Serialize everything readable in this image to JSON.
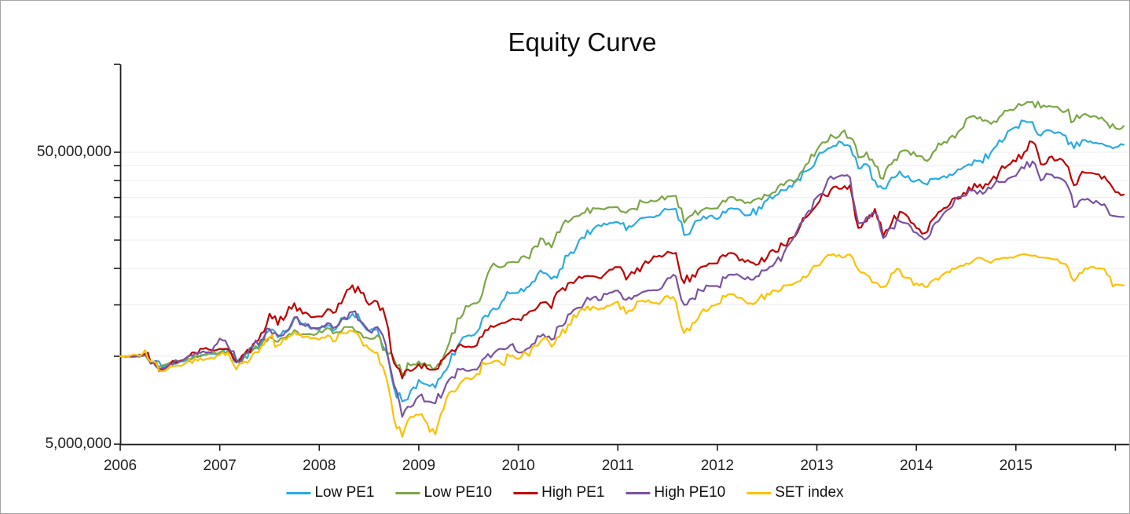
{
  "title": "Equity Curve",
  "chart_data": {
    "type": "line",
    "title": "Equity Curve",
    "legend_position": "bottom",
    "sampling": "monthly",
    "x_range": [
      "2006-01",
      "2016-02"
    ],
    "x_tick_labels": [
      "2006",
      "2007",
      "2008",
      "2009",
      "2010",
      "2011",
      "2012",
      "2013",
      "2014",
      "2015"
    ],
    "y_axis": {
      "scale": "log",
      "unit": "currency",
      "ylim_millions": [
        5,
        100
      ],
      "grid": true,
      "gridline_values_millions": [
        10,
        15,
        20,
        25,
        30,
        35,
        40,
        45,
        50
      ],
      "axis_tick_values_millions": [
        100,
        50,
        45,
        40,
        35,
        30,
        25,
        20,
        15,
        10,
        5
      ],
      "tick_labels": [
        {
          "label": "50,000,000",
          "value_millions": 50
        },
        {
          "label": "5,000,000",
          "value_millions": 5
        }
      ]
    },
    "series": [
      {
        "name": "Low PE1",
        "color": "#29ABE2",
        "values_millions": [
          10,
          10,
          10,
          10.1,
          9.6,
          9.2,
          9.4,
          9.5,
          9.7,
          10,
          10.1,
          10.2,
          10.3,
          10.5,
          9.5,
          10,
          10.6,
          11.2,
          12.3,
          11.6,
          12.1,
          13.5,
          12.8,
          12.4,
          12.3,
          12.8,
          12.4,
          13.4,
          14,
          13.1,
          12.2,
          12.4,
          10.5,
          7.8,
          7,
          7.6,
          8.3,
          8,
          7.8,
          8.8,
          10.2,
          11.2,
          11.8,
          12.1,
          13.8,
          14.6,
          15.4,
          16.4,
          16.5,
          17.2,
          18.1,
          19.3,
          18.4,
          19.8,
          22.1,
          23.6,
          25.4,
          27.2,
          27.9,
          28.6,
          28.8,
          27,
          28.3,
          29.8,
          30,
          30.4,
          31.8,
          32,
          26,
          27.6,
          29.3,
          30.2,
          29.5,
          31,
          32,
          31,
          30.5,
          32.5,
          34.3,
          35.5,
          37,
          38,
          40,
          43.5,
          47.8,
          50.5,
          52.5,
          54,
          52.5,
          44,
          45.5,
          40,
          37.5,
          41,
          43,
          41.5,
          40,
          39,
          40.5,
          41,
          42,
          43.7,
          45,
          47,
          46,
          50,
          55,
          58.8,
          61,
          64,
          63.5,
          57,
          59.5,
          58.5,
          57,
          51.6,
          55,
          54.5,
          53.5,
          52.5,
          52,
          53
        ]
      },
      {
        "name": "Low PE10",
        "color": "#7CA648",
        "values_millions": [
          10,
          10,
          10,
          10.1,
          9.6,
          9.3,
          9.5,
          9.6,
          9.8,
          10,
          10.1,
          10.2,
          10.3,
          10.4,
          9.6,
          10,
          10.5,
          10.9,
          11.6,
          11.2,
          11.6,
          12.3,
          11.9,
          11.9,
          12.2,
          12.5,
          12.1,
          12.6,
          12.6,
          12,
          11.5,
          11.8,
          10.5,
          9.8,
          8.7,
          9.3,
          9.6,
          9.3,
          9.1,
          10,
          12,
          13.5,
          14.8,
          15.2,
          18,
          20.8,
          20.2,
          21,
          21,
          21.8,
          23.8,
          25.2,
          23.6,
          26.6,
          28.8,
          30.2,
          31,
          32.2,
          32,
          32.4,
          32.4,
          31,
          32,
          33.8,
          34.2,
          34.5,
          35.3,
          35.5,
          28.7,
          30.5,
          31.5,
          32.1,
          32.1,
          33.8,
          35,
          34.2,
          33.5,
          34.8,
          35.5,
          36.5,
          38.5,
          40,
          42.5,
          46,
          50.8,
          54,
          56.5,
          58.5,
          56,
          48,
          50,
          45,
          40.5,
          45.5,
          50,
          50.5,
          48.5,
          47,
          50,
          53,
          56,
          58.5,
          65,
          66.5,
          64,
          62.5,
          66,
          69.3,
          71,
          73,
          74.4,
          71,
          72,
          71.5,
          69,
          64,
          67,
          66,
          65,
          63,
          60.5,
          61.5
        ]
      },
      {
        "name": "High PE1",
        "color": "#C00000",
        "values_millions": [
          10,
          10,
          10,
          10.2,
          9.6,
          9,
          9.4,
          9.6,
          9.9,
          10.3,
          10.6,
          10.5,
          10.6,
          10.6,
          9.6,
          10.2,
          11,
          12,
          14,
          12.8,
          13.8,
          15.2,
          14,
          13.6,
          13.7,
          14.5,
          14.2,
          16,
          17.5,
          16.5,
          15,
          15.4,
          13.5,
          9.5,
          8.4,
          8.9,
          9.4,
          9.1,
          9,
          9.8,
          10.5,
          11,
          10.8,
          10.9,
          12.3,
          12.6,
          13,
          13.3,
          13.4,
          13.9,
          14.4,
          15.3,
          14.6,
          16.8,
          17.8,
          18.3,
          18.8,
          18.8,
          18.5,
          19.8,
          20.2,
          18.3,
          19.2,
          20.5,
          21.3,
          22.1,
          22.8,
          22.6,
          17.8,
          19,
          20.2,
          20.8,
          20.8,
          22,
          22.5,
          21.5,
          21,
          20.7,
          21.8,
          22.8,
          24,
          25.5,
          28,
          30.5,
          33,
          35.5,
          38,
          37.5,
          38.5,
          27.5,
          29,
          32,
          25.8,
          28.5,
          31.3,
          30,
          27.5,
          26.4,
          29.5,
          31.5,
          33,
          34.6,
          36,
          39,
          37.5,
          40,
          43,
          45,
          46.5,
          50,
          54.2,
          45.5,
          48,
          47,
          45.5,
          38.5,
          42.9,
          42.5,
          42,
          40,
          36.5,
          35.8
        ]
      },
      {
        "name": "High PE10",
        "color": "#7B52A1",
        "values_millions": [
          10,
          10,
          10,
          10.1,
          9.5,
          9.1,
          9.4,
          9.6,
          9.9,
          10.2,
          10.4,
          10.3,
          11.5,
          10.8,
          9.7,
          10.2,
          10.8,
          11.4,
          12.4,
          11.8,
          12.2,
          13.6,
          12.9,
          12.5,
          12.5,
          13,
          12.6,
          13.6,
          14.2,
          13.2,
          12.2,
          12.6,
          11,
          8,
          6.2,
          6.7,
          7.3,
          7,
          6.9,
          7.6,
          8.5,
          9,
          8.9,
          9,
          9.9,
          10.2,
          10.6,
          10.9,
          10.3,
          10.6,
          11.1,
          11.9,
          11.4,
          12.7,
          13.9,
          14.6,
          15.3,
          15.9,
          15.6,
          16.5,
          16.8,
          15.6,
          16.1,
          16.6,
          16.8,
          16.9,
          18.5,
          18.8,
          15,
          15.8,
          16.8,
          17.4,
          17.4,
          18.5,
          19,
          18.6,
          18.3,
          18.8,
          19.8,
          21,
          22.5,
          25,
          28.5,
          31.5,
          35.1,
          38,
          40.5,
          41.7,
          41,
          28.5,
          30,
          31,
          25.4,
          27.5,
          29,
          28.5,
          26.5,
          25.1,
          28,
          30,
          32,
          35.1,
          35.5,
          37,
          36,
          37.5,
          39.5,
          40.5,
          41.5,
          44,
          46.5,
          40,
          42,
          41,
          39.5,
          32.4,
          34.5,
          34,
          33.5,
          32,
          30.2,
          30
        ]
      },
      {
        "name": "SET index",
        "color": "#FFC000",
        "values_millions": [
          10,
          10,
          10.1,
          10.5,
          9.6,
          8.9,
          9.2,
          9.3,
          9.5,
          9.8,
          9.7,
          9.9,
          10.1,
          10.3,
          9,
          9.6,
          10.2,
          10.8,
          11.6,
          10.9,
          11.4,
          12.1,
          11.6,
          11.5,
          11.4,
          11.8,
          11.3,
          12,
          12.2,
          11.4,
          10.6,
          10.3,
          8.6,
          6.1,
          5.3,
          6.2,
          6.3,
          5.9,
          5.4,
          6.6,
          7.6,
          8.1,
          8.4,
          8.7,
          9.4,
          9.6,
          9.4,
          10,
          9.8,
          10.2,
          10.9,
          11.5,
          10.8,
          11.7,
          12.8,
          13.6,
          14.4,
          14.8,
          14.6,
          14.9,
          15.4,
          14,
          14.6,
          15.5,
          15.3,
          15.1,
          16.1,
          15.4,
          12,
          13,
          14.1,
          14.5,
          15.1,
          16,
          16.3,
          15.8,
          15.2,
          15.7,
          16.4,
          16.8,
          17.5,
          17.6,
          18.1,
          19,
          20.4,
          21.8,
          22.4,
          21.8,
          22.3,
          19.8,
          19,
          17.9,
          17.3,
          19.2,
          19.8,
          18.6,
          17.8,
          17.3,
          18.2,
          18.9,
          19.4,
          20.2,
          20.8,
          21.4,
          21.6,
          20.9,
          21.5,
          21.7,
          22,
          22.4,
          22.1,
          21.8,
          21.7,
          21.5,
          20.7,
          18.1,
          19.3,
          20.2,
          20,
          19,
          17.6,
          17.5
        ]
      }
    ],
    "style": {
      "grid_color": "#EDEDED",
      "axis_color": "#1a1a1a",
      "text_color": "#1f1f1f",
      "background": "#FFFFFF"
    }
  }
}
